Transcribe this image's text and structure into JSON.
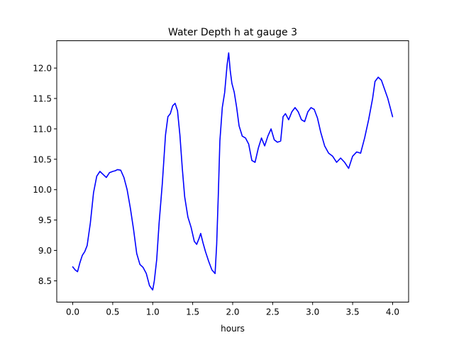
{
  "chart_data": {
    "type": "line",
    "title": "Water Depth h at gauge 3",
    "xlabel": "hours",
    "ylabel": "",
    "xlim": [
      -0.2,
      4.2
    ],
    "ylim": [
      8.15,
      12.45
    ],
    "xticks": [
      0.0,
      0.5,
      1.0,
      1.5,
      2.0,
      2.5,
      3.0,
      3.5,
      4.0
    ],
    "xtick_labels": [
      "0.0",
      "0.5",
      "1.0",
      "1.5",
      "2.0",
      "2.5",
      "3.0",
      "3.5",
      "4.0"
    ],
    "yticks": [
      8.5,
      9.0,
      9.5,
      10.0,
      10.5,
      11.0,
      11.5,
      12.0
    ],
    "ytick_labels": [
      "8.5",
      "9.0",
      "9.5",
      "10.0",
      "10.5",
      "11.0",
      "11.5",
      "12.0"
    ],
    "grid": false,
    "legend": "none",
    "series": [
      {
        "color": "#0000ff",
        "x": [
          0.0,
          0.03,
          0.06,
          0.09,
          0.12,
          0.15,
          0.18,
          0.22,
          0.26,
          0.3,
          0.34,
          0.38,
          0.42,
          0.46,
          0.5,
          0.53,
          0.56,
          0.6,
          0.64,
          0.68,
          0.72,
          0.76,
          0.8,
          0.84,
          0.88,
          0.92,
          0.96,
          1.0,
          1.02,
          1.05,
          1.08,
          1.12,
          1.16,
          1.19,
          1.22,
          1.25,
          1.28,
          1.31,
          1.34,
          1.37,
          1.4,
          1.44,
          1.48,
          1.52,
          1.55,
          1.58,
          1.6,
          1.63,
          1.66,
          1.7,
          1.74,
          1.78,
          1.8,
          1.82,
          1.84,
          1.87,
          1.9,
          1.93,
          1.95,
          1.97,
          1.99,
          2.02,
          2.05,
          2.08,
          2.12,
          2.16,
          2.2,
          2.24,
          2.28,
          2.32,
          2.36,
          2.4,
          2.44,
          2.48,
          2.52,
          2.56,
          2.6,
          2.63,
          2.66,
          2.7,
          2.74,
          2.78,
          2.82,
          2.86,
          2.9,
          2.94,
          2.98,
          3.02,
          3.06,
          3.1,
          3.15,
          3.2,
          3.25,
          3.3,
          3.35,
          3.4,
          3.45,
          3.5,
          3.55,
          3.6,
          3.65,
          3.7,
          3.75,
          3.78,
          3.82,
          3.86,
          3.9,
          3.94,
          3.98,
          4.0
        ],
        "y": [
          8.73,
          8.68,
          8.65,
          8.8,
          8.92,
          8.98,
          9.08,
          9.45,
          9.95,
          10.22,
          10.3,
          10.25,
          10.2,
          10.28,
          10.3,
          10.31,
          10.33,
          10.32,
          10.2,
          10.0,
          9.7,
          9.35,
          8.95,
          8.77,
          8.72,
          8.62,
          8.42,
          8.35,
          8.5,
          8.85,
          9.45,
          10.1,
          10.9,
          11.2,
          11.25,
          11.38,
          11.42,
          11.3,
          10.9,
          10.35,
          9.88,
          9.55,
          9.38,
          9.15,
          9.1,
          9.2,
          9.28,
          9.12,
          8.98,
          8.82,
          8.68,
          8.62,
          9.1,
          9.9,
          10.8,
          11.35,
          11.6,
          12.05,
          12.25,
          11.95,
          11.75,
          11.6,
          11.35,
          11.05,
          10.88,
          10.85,
          10.75,
          10.48,
          10.45,
          10.68,
          10.85,
          10.72,
          10.88,
          11.0,
          10.82,
          10.78,
          10.8,
          11.2,
          11.25,
          11.15,
          11.28,
          11.35,
          11.28,
          11.15,
          11.12,
          11.28,
          11.35,
          11.32,
          11.18,
          10.95,
          10.72,
          10.6,
          10.55,
          10.45,
          10.52,
          10.45,
          10.35,
          10.55,
          10.62,
          10.6,
          10.85,
          11.15,
          11.5,
          11.78,
          11.85,
          11.8,
          11.65,
          11.5,
          11.3,
          11.2
        ]
      }
    ]
  }
}
